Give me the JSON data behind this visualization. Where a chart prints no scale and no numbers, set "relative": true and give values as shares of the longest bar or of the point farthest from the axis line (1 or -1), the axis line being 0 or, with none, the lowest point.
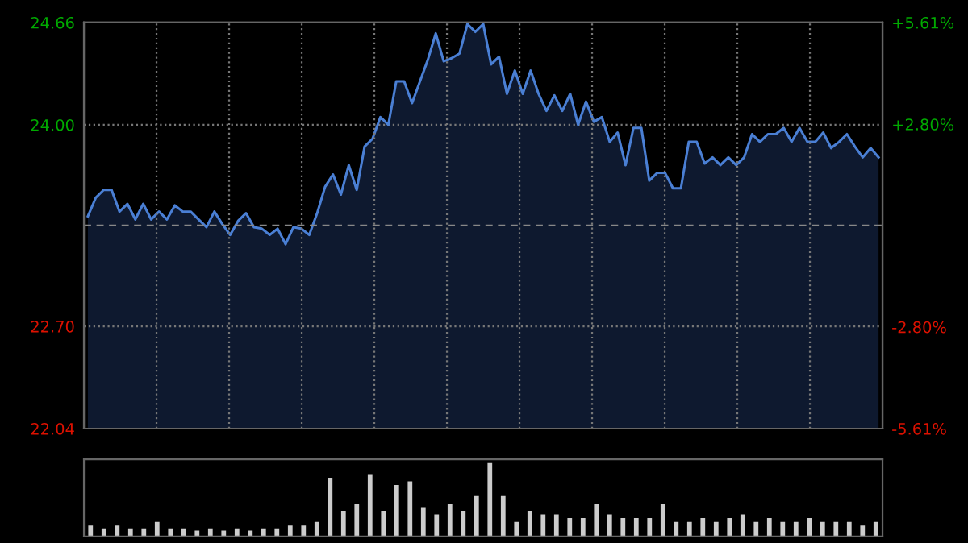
{
  "chart_data": [
    {
      "type": "area",
      "categories": [
        null,
        null,
        null,
        null,
        null,
        null,
        null,
        null,
        null,
        null,
        null,
        null,
        null,
        null,
        null,
        null,
        null,
        null,
        null,
        null,
        null,
        null,
        null,
        null,
        null,
        null,
        null,
        null,
        null,
        null,
        null,
        null,
        null,
        null,
        null,
        null,
        null,
        null,
        null,
        null,
        null,
        null,
        null,
        null,
        null,
        null,
        null,
        null,
        null,
        null,
        null,
        null,
        null,
        null,
        null,
        null,
        null,
        null,
        null,
        null,
        null,
        null,
        null,
        null,
        null,
        null,
        null,
        null,
        null,
        null,
        null,
        null,
        null,
        null,
        null,
        null,
        null,
        null,
        null,
        null,
        null,
        null,
        null,
        null,
        null,
        null,
        null,
        null,
        null,
        null,
        null,
        null,
        null,
        null,
        null,
        null,
        null,
        null,
        null,
        null,
        null
      ],
      "series": [
        {
          "color": "#4a7fd4",
          "values": [
            23.41,
            23.53,
            23.58,
            23.58,
            23.44,
            23.49,
            23.39,
            23.49,
            23.39,
            23.44,
            23.39,
            23.48,
            23.44,
            23.44,
            23.39,
            23.34,
            23.44,
            23.36,
            23.29,
            23.38,
            23.43,
            23.34,
            23.33,
            23.29,
            23.33,
            23.23,
            23.34,
            23.33,
            23.29,
            23.43,
            23.6,
            23.68,
            23.55,
            23.74,
            23.58,
            23.86,
            23.91,
            24.05,
            24.0,
            24.28,
            24.28,
            24.14,
            24.28,
            24.42,
            24.59,
            24.41,
            24.43,
            24.46,
            24.65,
            24.6,
            24.65,
            24.39,
            24.44,
            24.2,
            24.35,
            24.2,
            24.35,
            24.2,
            24.09,
            24.19,
            24.09,
            24.2,
            24.0,
            24.15,
            24.02,
            24.05,
            23.89,
            23.95,
            23.74,
            23.98,
            23.98,
            23.64,
            23.69,
            23.69,
            23.59,
            23.59,
            23.89,
            23.89,
            23.75,
            23.79,
            23.74,
            23.79,
            23.74,
            23.79,
            23.94,
            23.89,
            23.94,
            23.94,
            23.98,
            23.89,
            23.98,
            23.89,
            23.89,
            23.95,
            23.85,
            23.89,
            23.94,
            23.86,
            23.79,
            23.85,
            23.79
          ]
        }
      ],
      "ylim": [
        22.04,
        24.66
      ],
      "yticks": [
        {
          "value": 22.04,
          "label": "22.04"
        },
        {
          "value": 22.7,
          "label": "22.70"
        },
        {
          "value": 24.0,
          "label": "24.00"
        },
        {
          "value": 24.66,
          "label": "24.66"
        }
      ],
      "y2lim": [
        -5.61,
        5.61
      ],
      "y2ticks": [
        {
          "value": -5.61,
          "label": "-5.61%"
        },
        {
          "value": -2.8,
          "label": "-2.80%"
        },
        {
          "value": 2.8,
          "label": "+2.80%"
        },
        {
          "value": 5.61,
          "label": "+5.61%"
        }
      ],
      "ref_lines": [
        {
          "axis": "y",
          "value": 23.35,
          "color": "#888888",
          "line_style": "dashed"
        }
      ],
      "grid": true
    },
    {
      "type": "bar",
      "relative": true,
      "categories": [
        null,
        null,
        null,
        null,
        null,
        null,
        null,
        null,
        null,
        null,
        null,
        null,
        null,
        null,
        null,
        null,
        null,
        null,
        null,
        null,
        null,
        null,
        null,
        null,
        null,
        null,
        null,
        null,
        null,
        null,
        null,
        null,
        null,
        null,
        null,
        null,
        null,
        null,
        null,
        null,
        null,
        null,
        null,
        null,
        null,
        null,
        null,
        null,
        null,
        null,
        null,
        null,
        null,
        null,
        null,
        null,
        null,
        null,
        null,
        null
      ],
      "series": [
        {
          "color": "#cccccc",
          "values": [
            0.15,
            0.1,
            0.15,
            0.1,
            0.1,
            0.2,
            0.1,
            0.1,
            0.08,
            0.1,
            0.08,
            0.1,
            0.08,
            0.1,
            0.1,
            0.15,
            0.15,
            0.2,
            0.8,
            0.35,
            0.45,
            0.85,
            0.35,
            0.7,
            0.75,
            0.4,
            0.3,
            0.45,
            0.35,
            0.55,
            1.0,
            0.55,
            0.2,
            0.35,
            0.3,
            0.3,
            0.25,
            0.25,
            0.45,
            0.3,
            0.25,
            0.25,
            0.25,
            0.45,
            0.2,
            0.2,
            0.25,
            0.2,
            0.25,
            0.3,
            0.2,
            0.25,
            0.2,
            0.2,
            0.25,
            0.2,
            0.2,
            0.2,
            0.15,
            0.2
          ]
        }
      ]
    }
  ]
}
